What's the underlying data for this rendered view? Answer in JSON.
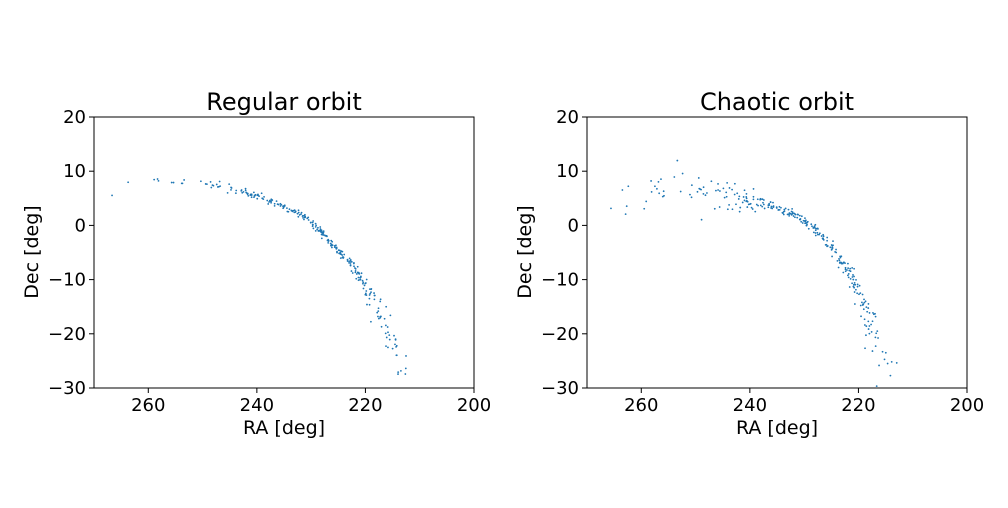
{
  "chart_data": [
    {
      "type": "scatter",
      "title": "Regular orbit",
      "xlabel": "RA [deg]",
      "ylabel": "Dec [deg]",
      "xlim": [
        270,
        200
      ],
      "ylim": [
        -30,
        20
      ],
      "xticks": [
        "260",
        "240",
        "220",
        "200"
      ],
      "yticks": [
        "20",
        "10",
        "0",
        "−10",
        "−20",
        "−30"
      ],
      "grid": false,
      "marker_color": "#1f77b4",
      "ridge": {
        "x": [
          268,
          262,
          256,
          250,
          245,
          240,
          235,
          230,
          228,
          225,
          222,
          220,
          218,
          216,
          214,
          212.5
        ],
        "y": [
          6.8,
          7.8,
          8.3,
          7.8,
          6.8,
          5.5,
          3.5,
          0.8,
          -1.5,
          -4.5,
          -8.0,
          -11.0,
          -15.0,
          -19.5,
          -24.0,
          -30.0
        ]
      },
      "spread": [
        1.0,
        0.9,
        0.7,
        0.5,
        0.4,
        0.3,
        0.3,
        0.3,
        0.35,
        0.4,
        0.5,
        0.6,
        0.8,
        1.0,
        1.2,
        1.3
      ],
      "density": [
        2,
        3,
        5,
        14,
        26,
        32,
        34,
        30,
        32,
        32,
        28,
        22,
        16,
        12,
        8,
        1
      ]
    },
    {
      "type": "scatter",
      "title": "Chaotic orbit",
      "xlabel": "RA [deg]",
      "ylabel": "Dec [deg]",
      "xlim": [
        270,
        200
      ],
      "ylim": [
        -30,
        20
      ],
      "xticks": [
        "260",
        "240",
        "220",
        "200"
      ],
      "yticks": [
        "20",
        "10",
        "0",
        "−10",
        "−20",
        "−30"
      ],
      "grid": false,
      "marker_color": "#1f77b4",
      "ridge": {
        "x": [
          266,
          262,
          257,
          252,
          247,
          242,
          237,
          232,
          228,
          225,
          222,
          220,
          218,
          216.5,
          215
        ],
        "y": [
          5.5,
          6.5,
          7.0,
          6.8,
          6.2,
          5.3,
          4.0,
          2.0,
          -0.5,
          -4.0,
          -8.0,
          -12.5,
          -17.0,
          -22.0,
          -29.0
        ]
      },
      "spread": [
        3.5,
        3.5,
        3.2,
        2.8,
        2.0,
        1.2,
        0.6,
        0.4,
        0.4,
        0.5,
        0.7,
        1.1,
        1.6,
        2.0,
        2.2
      ],
      "density": [
        4,
        6,
        10,
        14,
        22,
        36,
        40,
        34,
        30,
        30,
        28,
        24,
        18,
        14,
        1
      ]
    }
  ]
}
